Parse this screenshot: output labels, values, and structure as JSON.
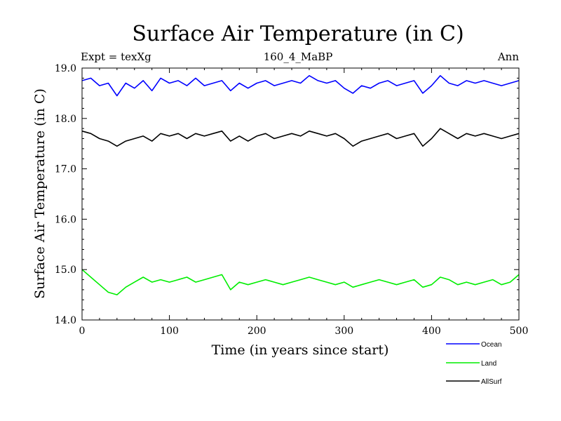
{
  "chart_data": {
    "type": "line",
    "title": "Surface Air Temperature (in C)",
    "subtitle": "160_4_MaBP",
    "left_label": "Expt = texXg",
    "right_label": "Ann",
    "xlabel": "Time (in years since start)",
    "ylabel": "Surface Air Temperature (in C)",
    "xlim": [
      0,
      500
    ],
    "ylim": [
      14.0,
      19.0
    ],
    "x_ticks": [
      0,
      100,
      200,
      300,
      400,
      500
    ],
    "x_tick_labels": [
      "0",
      "100",
      "200",
      "300",
      "400",
      "500"
    ],
    "y_ticks": [
      14.0,
      15.0,
      16.0,
      17.0,
      18.0,
      19.0
    ],
    "y_tick_labels": [
      "14.0",
      "15.0",
      "16.0",
      "17.0",
      "18.0",
      "19.0"
    ],
    "legend_position": "bottom-right, below plot",
    "series": [
      {
        "name": "Ocean",
        "color": "#0000ff",
        "x": [
          0,
          10,
          20,
          30,
          40,
          50,
          60,
          70,
          80,
          90,
          100,
          110,
          120,
          130,
          140,
          150,
          160,
          170,
          180,
          190,
          200,
          210,
          220,
          230,
          240,
          250,
          260,
          270,
          280,
          290,
          300,
          310,
          320,
          330,
          340,
          350,
          360,
          370,
          380,
          390,
          400,
          410,
          420,
          430,
          440,
          450,
          460,
          470,
          480,
          490,
          500
        ],
        "values": [
          18.75,
          18.8,
          18.65,
          18.7,
          18.45,
          18.7,
          18.6,
          18.75,
          18.55,
          18.8,
          18.7,
          18.75,
          18.65,
          18.8,
          18.65,
          18.7,
          18.75,
          18.55,
          18.7,
          18.6,
          18.7,
          18.75,
          18.65,
          18.7,
          18.75,
          18.7,
          18.85,
          18.75,
          18.7,
          18.75,
          18.6,
          18.5,
          18.65,
          18.6,
          18.7,
          18.75,
          18.65,
          18.7,
          18.75,
          18.5,
          18.65,
          18.85,
          18.7,
          18.65,
          18.75,
          18.7,
          18.75,
          18.7,
          18.65,
          18.7,
          18.75
        ]
      },
      {
        "name": "Land",
        "color": "#00ee00",
        "x": [
          0,
          10,
          20,
          30,
          40,
          50,
          60,
          70,
          80,
          90,
          100,
          110,
          120,
          130,
          140,
          150,
          160,
          170,
          180,
          190,
          200,
          210,
          220,
          230,
          240,
          250,
          260,
          270,
          280,
          290,
          300,
          310,
          320,
          330,
          340,
          350,
          360,
          370,
          380,
          390,
          400,
          410,
          420,
          430,
          440,
          450,
          460,
          470,
          480,
          490,
          500
        ],
        "values": [
          15.0,
          14.85,
          14.7,
          14.55,
          14.5,
          14.65,
          14.75,
          14.85,
          14.75,
          14.8,
          14.75,
          14.8,
          14.85,
          14.75,
          14.8,
          14.85,
          14.9,
          14.6,
          14.75,
          14.7,
          14.75,
          14.8,
          14.75,
          14.7,
          14.75,
          14.8,
          14.85,
          14.8,
          14.75,
          14.7,
          14.75,
          14.65,
          14.7,
          14.75,
          14.8,
          14.75,
          14.7,
          14.75,
          14.8,
          14.65,
          14.7,
          14.85,
          14.8,
          14.7,
          14.75,
          14.7,
          14.75,
          14.8,
          14.7,
          14.75,
          14.9
        ]
      },
      {
        "name": "AllSurf",
        "color": "#000000",
        "x": [
          0,
          10,
          20,
          30,
          40,
          50,
          60,
          70,
          80,
          90,
          100,
          110,
          120,
          130,
          140,
          150,
          160,
          170,
          180,
          190,
          200,
          210,
          220,
          230,
          240,
          250,
          260,
          270,
          280,
          290,
          300,
          310,
          320,
          330,
          340,
          350,
          360,
          370,
          380,
          390,
          400,
          410,
          420,
          430,
          440,
          450,
          460,
          470,
          480,
          490,
          500
        ],
        "values": [
          17.75,
          17.7,
          17.6,
          17.55,
          17.45,
          17.55,
          17.6,
          17.65,
          17.55,
          17.7,
          17.65,
          17.7,
          17.6,
          17.7,
          17.65,
          17.7,
          17.75,
          17.55,
          17.65,
          17.55,
          17.65,
          17.7,
          17.6,
          17.65,
          17.7,
          17.65,
          17.75,
          17.7,
          17.65,
          17.7,
          17.6,
          17.45,
          17.55,
          17.6,
          17.65,
          17.7,
          17.6,
          17.65,
          17.7,
          17.45,
          17.6,
          17.8,
          17.7,
          17.6,
          17.7,
          17.65,
          17.7,
          17.65,
          17.6,
          17.65,
          17.7
        ]
      }
    ]
  }
}
